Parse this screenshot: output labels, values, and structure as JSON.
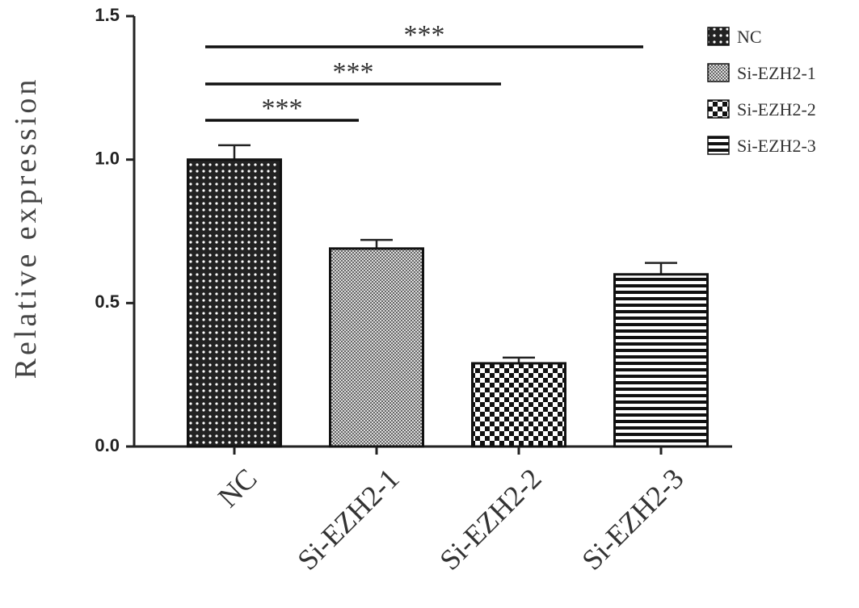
{
  "chart_data": {
    "type": "bar",
    "y_label": "Relative expression",
    "categories": [
      "NC",
      "Si-EZH2-1",
      "Si-EZH2-2",
      "Si-EZH2-3"
    ],
    "values": [
      1.0,
      0.69,
      0.29,
      0.6
    ],
    "errors": [
      0.05,
      0.03,
      0.02,
      0.04
    ],
    "patterns": [
      "dots",
      "fine-checker",
      "checker",
      "stripes"
    ],
    "ylim": [
      0,
      1.5
    ],
    "yticks": [
      {
        "value": 0,
        "label": "0.0"
      },
      {
        "value": 0.5,
        "label": "0.5"
      },
      {
        "value": 1,
        "label": "1.0"
      },
      {
        "value": 1.5,
        "label": "1.5"
      }
    ],
    "legend": "top-right",
    "comparisons": [
      {
        "groups": [
          "NC",
          "Si-EZH2-1"
        ],
        "label": "***"
      },
      {
        "groups": [
          "NC",
          "Si-EZH2-2"
        ],
        "label": "***"
      },
      {
        "groups": [
          "NC",
          "Si-EZH2-3"
        ],
        "label": "***"
      }
    ]
  }
}
